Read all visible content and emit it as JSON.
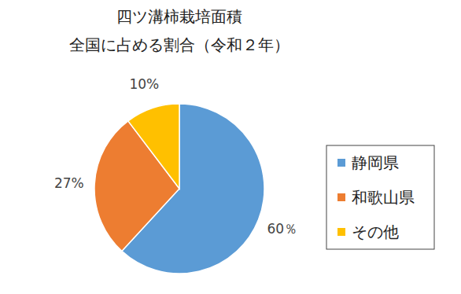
{
  "chart_data": {
    "type": "pie",
    "title": [
      "四ツ溝柿栽培面積",
      "全国に占める割合（令和２年）"
    ],
    "categories": [
      "静岡県",
      "和歌山県",
      "その他"
    ],
    "values": [
      60,
      27,
      10
    ],
    "value_labels": [
      "60％",
      "27%",
      "10%"
    ],
    "colors": [
      "#5b9bd5",
      "#ed7d31",
      "#ffc000"
    ],
    "data_labels": true,
    "legend": "right"
  }
}
